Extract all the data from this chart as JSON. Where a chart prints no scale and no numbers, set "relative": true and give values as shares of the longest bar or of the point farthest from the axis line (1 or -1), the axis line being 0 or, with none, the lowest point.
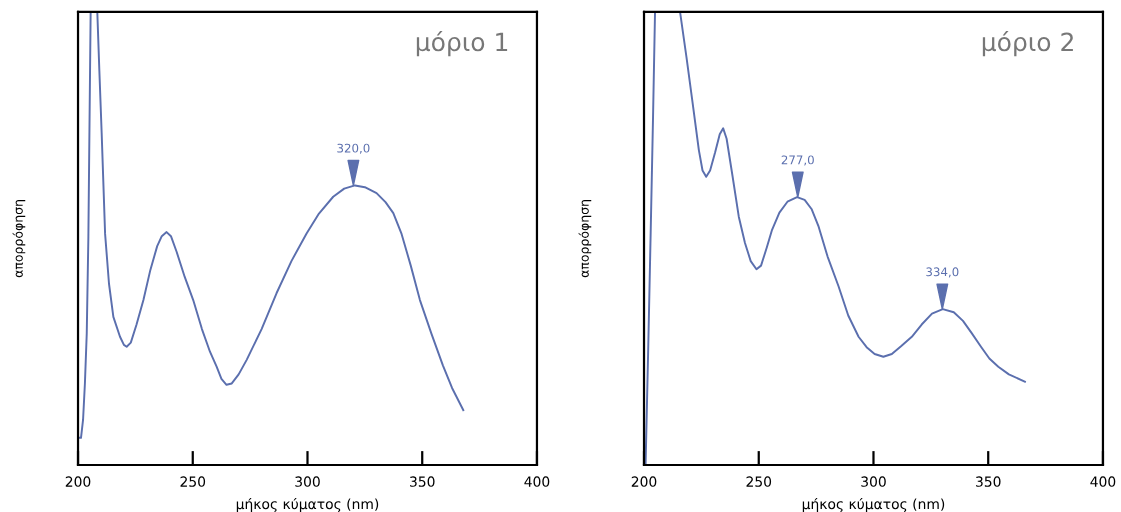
{
  "chart_data": [
    {
      "type": "line",
      "title": "μόριο 1",
      "xlabel": "μήκος κύματος (nm)",
      "ylabel": "απορρόφηση",
      "relative": true,
      "xlim": [
        200,
        400
      ],
      "xticks": [
        200,
        250,
        300,
        350,
        400
      ],
      "grid": false,
      "legend": false,
      "tick_labels": "x",
      "series": [
        {
          "color": "#5b6fae",
          "x": [
            200.5,
            201.3,
            202.2,
            203.0,
            203.8,
            204.5,
            205.5,
            208.4,
            209.3,
            210.3,
            211.8,
            213.5,
            215.4,
            218.3,
            220.0,
            221.2,
            223.0,
            225.5,
            228.5,
            231.5,
            234.5,
            236.5,
            238.6,
            240.5,
            243.0,
            246.5,
            250.2,
            254.0,
            257.5,
            260.4,
            262.5,
            264.7,
            267.0,
            270.0,
            273.5,
            280.0,
            286.5,
            293.0,
            299.6,
            305.0,
            311.2,
            316.0,
            320.7,
            325.0,
            330.1,
            334.0,
            337.4,
            341.0,
            345.0,
            349.0,
            354.0,
            359.0,
            363.0,
            367.9
          ],
          "values": [
            0.06,
            0.06,
            0.1,
            0.18,
            0.29,
            0.5,
            1.0,
            1.0,
            0.87,
            0.733,
            0.51,
            0.4,
            0.327,
            0.283,
            0.265,
            0.261,
            0.27,
            0.31,
            0.364,
            0.43,
            0.483,
            0.505,
            0.514,
            0.505,
            0.47,
            0.415,
            0.364,
            0.3,
            0.25,
            0.217,
            0.19,
            0.177,
            0.18,
            0.2,
            0.232,
            0.3,
            0.379,
            0.45,
            0.511,
            0.555,
            0.592,
            0.61,
            0.617,
            0.613,
            0.6,
            0.58,
            0.556,
            0.51,
            0.44,
            0.364,
            0.29,
            0.22,
            0.17,
            0.121
          ]
        }
      ],
      "annotations": [
        {
          "text": "320,0",
          "x": 320,
          "y": 0.617
        }
      ]
    },
    {
      "type": "line",
      "title": "μόριο 2",
      "xlabel": "μήκος κύματος (nm)",
      "ylabel": "απορρόφηση",
      "relative": true,
      "xlim": [
        200,
        400
      ],
      "xticks": [
        200,
        250,
        300,
        350,
        400
      ],
      "grid": false,
      "legend": false,
      "tick_labels": "x",
      "series": [
        {
          "color": "#5b6fae",
          "x": [
            200.7,
            201.8,
            202.9,
            203.9,
            204.8,
            215.7,
            218.5,
            221.0,
            223.9,
            225.5,
            227.1,
            228.8,
            231.0,
            233.0,
            234.5,
            236.0,
            238.5,
            241.3,
            244.0,
            246.5,
            249.0,
            251.0,
            253.5,
            255.8,
            259.0,
            262.5,
            266.7,
            270.0,
            273.0,
            276.1,
            280.0,
            284.8,
            289.0,
            293.5,
            297.0,
            300.5,
            304.3,
            308.0,
            312.0,
            316.7,
            321.0,
            325.5,
            330.2,
            335.0,
            339.0,
            342.8,
            347.0,
            350.5,
            354.4,
            359.0,
            366.0
          ],
          "values": [
            0.004,
            0.25,
            0.512,
            0.76,
            1.0,
            1.0,
            0.9,
            0.806,
            0.695,
            0.65,
            0.636,
            0.65,
            0.69,
            0.73,
            0.743,
            0.72,
            0.64,
            0.548,
            0.49,
            0.45,
            0.432,
            0.44,
            0.48,
            0.519,
            0.557,
            0.581,
            0.591,
            0.585,
            0.565,
            0.526,
            0.46,
            0.394,
            0.33,
            0.283,
            0.26,
            0.245,
            0.239,
            0.245,
            0.262,
            0.283,
            0.31,
            0.334,
            0.344,
            0.337,
            0.318,
            0.291,
            0.26,
            0.235,
            0.217,
            0.2,
            0.184
          ]
        }
      ],
      "annotations": [
        {
          "text": "277,0",
          "x": 267,
          "y": 0.591
        },
        {
          "text": "334,0",
          "x": 330,
          "y": 0.344
        }
      ]
    }
  ]
}
